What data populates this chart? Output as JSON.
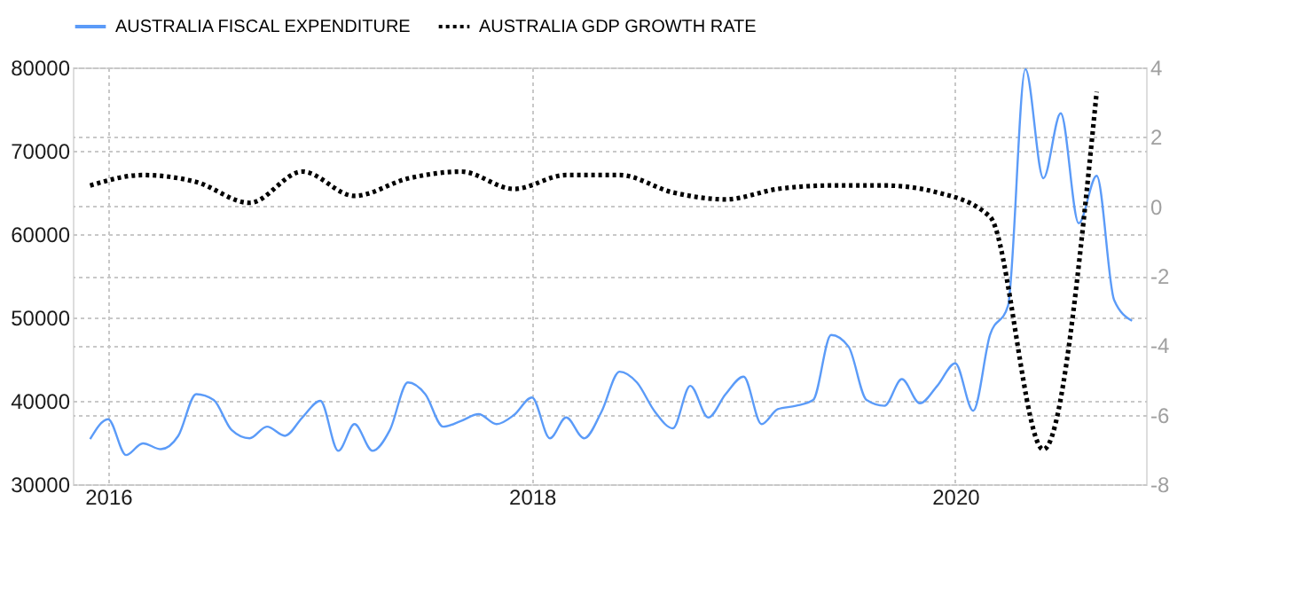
{
  "chart_data": {
    "type": "line",
    "legend": "top left",
    "grid": true,
    "xlim": [
      "2015-11-01",
      "2020-11-25"
    ],
    "xticks": [
      "2016",
      "2018",
      "2020"
    ],
    "ylim": [
      30000,
      80000
    ],
    "yticks": [
      30000,
      40000,
      50000,
      60000,
      70000,
      80000
    ],
    "y2lim": [
      -8,
      4
    ],
    "y2ticks": [
      -8,
      -6,
      -4,
      -2,
      0,
      2,
      4
    ],
    "series": [
      {
        "name": "AUSTRALIA FISCAL EXPENDITURE",
        "color": "#5b9bf8",
        "line_style": "solid",
        "x": [
          "2015-12",
          "2016-01",
          "2016-02",
          "2016-03",
          "2016-04",
          "2016-05",
          "2016-06",
          "2016-07",
          "2016-08",
          "2016-09",
          "2016-10",
          "2016-11",
          "2016-12",
          "2017-01",
          "2017-02",
          "2017-03",
          "2017-04",
          "2017-05",
          "2017-06",
          "2017-07",
          "2017-08",
          "2017-09",
          "2017-10",
          "2017-11",
          "2017-12",
          "2018-01",
          "2018-02",
          "2018-03",
          "2018-04",
          "2018-05",
          "2018-06",
          "2018-07",
          "2018-08",
          "2018-09",
          "2018-10",
          "2018-11",
          "2018-12",
          "2019-01",
          "2019-02",
          "2019-03",
          "2019-04",
          "2019-05",
          "2019-06",
          "2019-07",
          "2019-08",
          "2019-09",
          "2019-10",
          "2019-11",
          "2019-12",
          "2020-01",
          "2020-02",
          "2020-03",
          "2020-04",
          "2020-05",
          "2020-06",
          "2020-07",
          "2020-08",
          "2020-09",
          "2020-10",
          "2020-11"
        ],
        "values": [
          35400,
          37800,
          33500,
          34900,
          34200,
          35800,
          40800,
          40100,
          36500,
          35500,
          36900,
          35800,
          38000,
          40000,
          34000,
          37200,
          34000,
          36500,
          42200,
          40800,
          36900,
          37600,
          38400,
          37200,
          38300,
          40400,
          35500,
          38000,
          35500,
          38700,
          43500,
          42200,
          38700,
          36700,
          41800,
          38000,
          40800,
          42900,
          37200,
          39000,
          39400,
          40100,
          47900,
          46500,
          40100,
          39400,
          42600,
          39700,
          41800,
          44500,
          38800,
          47900,
          51400,
          79800,
          66700,
          74500,
          61300,
          67000,
          52100,
          49600
        ]
      },
      {
        "name": "AUSTRALIA GDP GROWTH RATE",
        "color": "#000000",
        "line_style": "dotted",
        "axis": "y2",
        "x": [
          "2015-12",
          "2016-03",
          "2016-06",
          "2016-09",
          "2016-12",
          "2017-03",
          "2017-06",
          "2017-09",
          "2017-12",
          "2018-03",
          "2018-06",
          "2018-09",
          "2018-12",
          "2019-03",
          "2019-06",
          "2019-09",
          "2019-12",
          "2020-03",
          "2020-06",
          "2020-09"
        ],
        "values": [
          0.6,
          0.9,
          0.7,
          0.1,
          1.0,
          0.3,
          0.8,
          1.0,
          0.5,
          0.9,
          0.9,
          0.4,
          0.2,
          0.5,
          0.6,
          0.6,
          0.4,
          -0.3,
          -7.0,
          3.3
        ]
      }
    ]
  }
}
